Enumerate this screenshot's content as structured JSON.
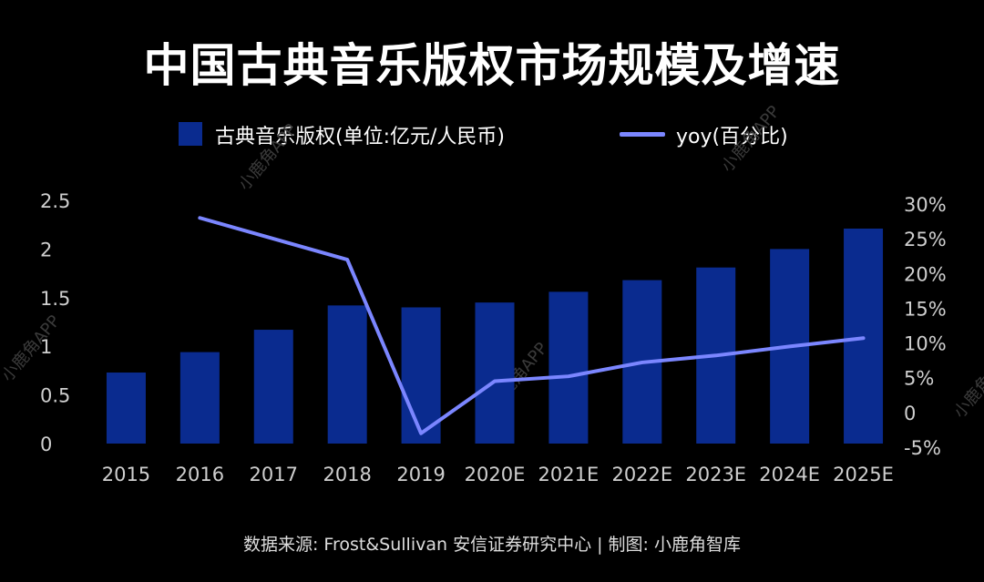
{
  "title": "中国古典音乐版权市场规模及增速",
  "legend": {
    "bar_label": "古典音乐版权(单位:亿元/人民币)",
    "line_label": "yoy(百分比)"
  },
  "source": "数据来源: Frost&Sullivan  安信证券研究中心 | 制图: 小鹿角智库",
  "watermark": "小鹿角APP",
  "colors": {
    "bar": "#0a2b8f",
    "line": "#7b86ff",
    "background": "#000000"
  },
  "chart_data": {
    "type": "bar",
    "title": "中国古典音乐版权市场规模及增速",
    "categories": [
      "2015",
      "2016",
      "2017",
      "2018",
      "2019",
      "2020E",
      "2021E",
      "2022E",
      "2023E",
      "2024E",
      "2025E"
    ],
    "series": [
      {
        "name": "古典音乐版权(单位:亿元/人民币)",
        "type": "bar",
        "axis": "left",
        "values": [
          0.73,
          0.94,
          1.17,
          1.42,
          1.4,
          1.45,
          1.56,
          1.68,
          1.81,
          2.0,
          2.21
        ]
      },
      {
        "name": "yoy(百分比)",
        "type": "line",
        "axis": "right",
        "values": [
          null,
          28,
          null,
          22,
          -3,
          4.5,
          5.2,
          7.2,
          8.2,
          9.5,
          10.7
        ]
      }
    ],
    "y_left": {
      "ylim": [
        0,
        2.5
      ],
      "ticks": [
        "0",
        "0.5",
        "1",
        "1.5",
        "2",
        "2.5"
      ],
      "tick_values": [
        0,
        0.5,
        1,
        1.5,
        2,
        2.5
      ]
    },
    "y_right": {
      "ylim": [
        -5,
        30
      ],
      "ticks": [
        "-5%",
        "0",
        "5%",
        "10%",
        "15%",
        "20%",
        "25%",
        "30%"
      ],
      "tick_values": [
        -5,
        0,
        5,
        10,
        15,
        20,
        25,
        30
      ]
    },
    "grid": false,
    "legend_position": "top"
  }
}
